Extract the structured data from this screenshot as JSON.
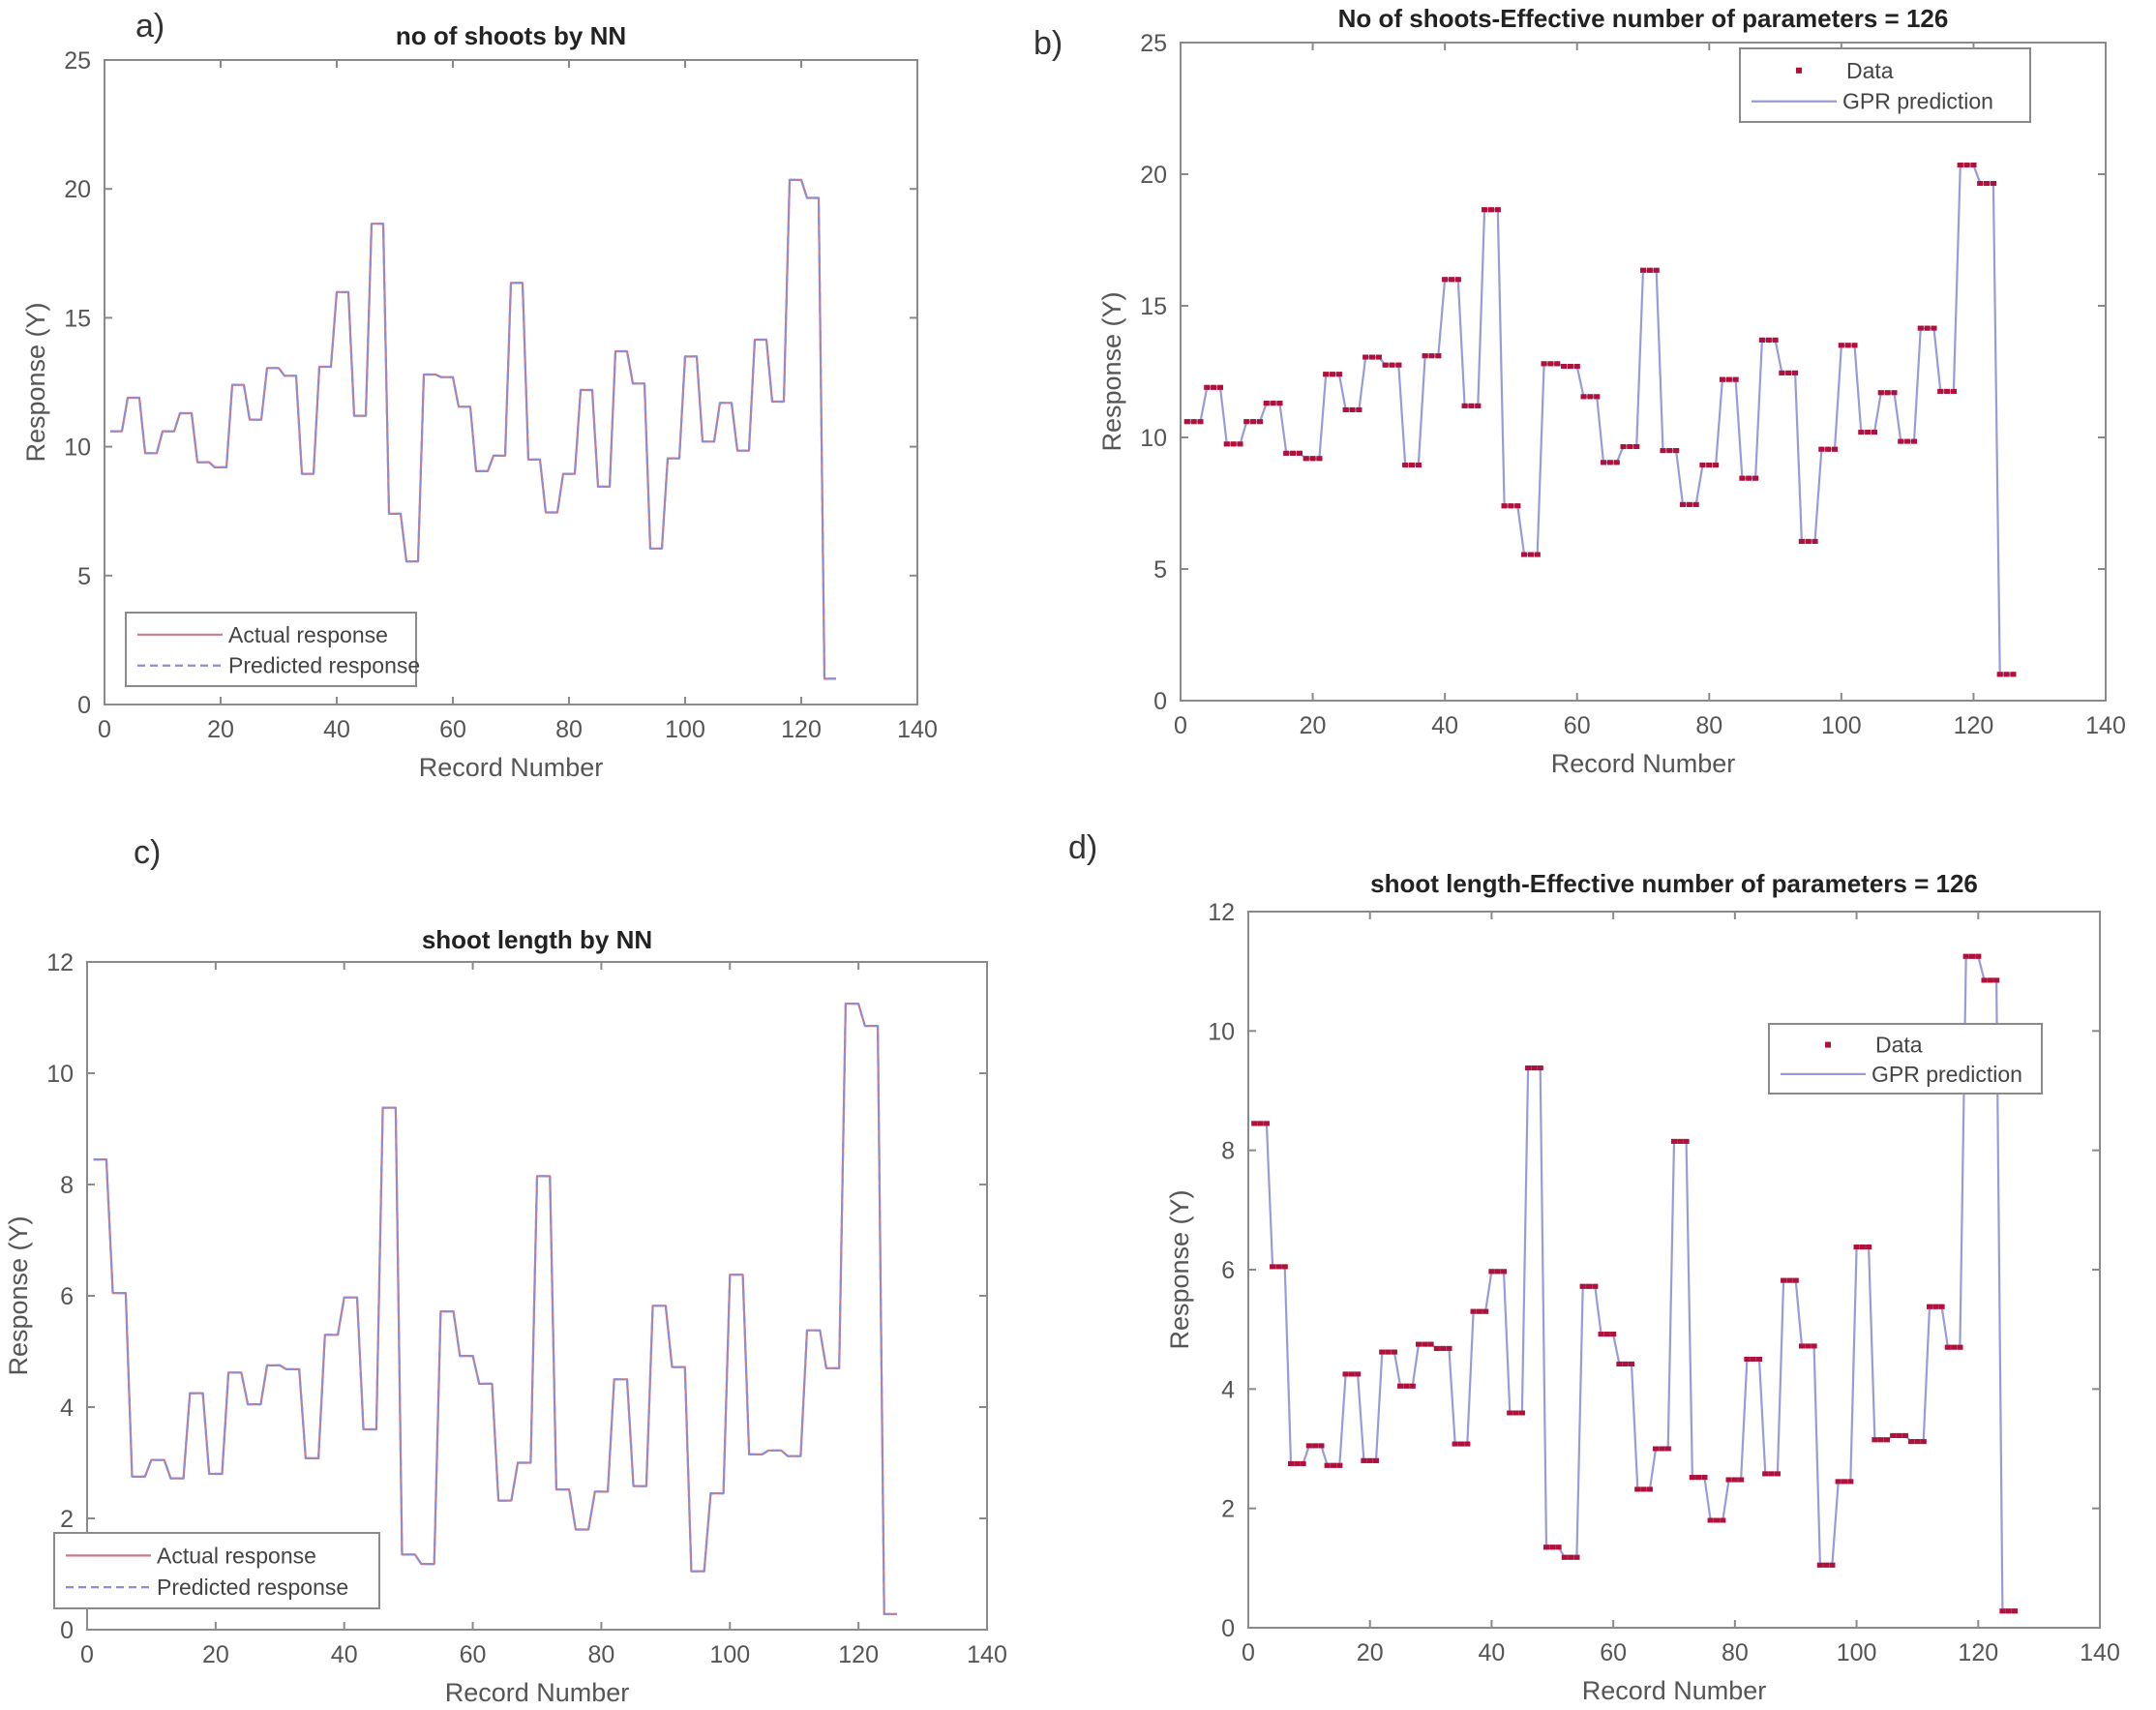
{
  "panel_labels": [
    "a)",
    "b)",
    "c)",
    "d)"
  ],
  "chart_data": [
    {
      "id": "a",
      "type": "line",
      "title": "no of shoots by NN",
      "xlabel": "Record Number",
      "ylabel": "Response (Y)",
      "xlim": [
        0,
        140
      ],
      "ylim": [
        0,
        25
      ],
      "xticks": [
        0,
        20,
        40,
        60,
        80,
        100,
        120,
        140
      ],
      "yticks": [
        0,
        5,
        10,
        15,
        20,
        25
      ],
      "grid": false,
      "legend_position": "bottom-left",
      "series": [
        {
          "name": "Actual response",
          "style": "solid",
          "color": "#c97a8a",
          "source": "no_of_shoots"
        },
        {
          "name": "Predicted response",
          "style": "dashed",
          "color": "#8c8cd8",
          "source": "no_of_shoots"
        }
      ]
    },
    {
      "id": "b",
      "type": "line",
      "title": "No of shoots-Effective number of parameters = 126",
      "xlabel": "Record Number",
      "ylabel": "Response (Y)",
      "xlim": [
        0,
        140
      ],
      "ylim": [
        0,
        25
      ],
      "xticks": [
        0,
        20,
        40,
        60,
        80,
        100,
        120,
        140
      ],
      "yticks": [
        0,
        5,
        10,
        15,
        20,
        25
      ],
      "grid": false,
      "legend_position": "top-right",
      "series": [
        {
          "name": "Data",
          "style": "points",
          "color": "#b0103a",
          "source": "no_of_shoots"
        },
        {
          "name": "GPR prediction",
          "style": "solid",
          "color": "#9a9ad8",
          "source": "no_of_shoots"
        }
      ]
    },
    {
      "id": "c",
      "type": "line",
      "title": "shoot length by NN",
      "xlabel": "Record Number",
      "ylabel": "Response (Y)",
      "xlim": [
        0,
        140
      ],
      "ylim": [
        0,
        12
      ],
      "xticks": [
        0,
        20,
        40,
        60,
        80,
        100,
        120,
        140
      ],
      "yticks": [
        0,
        2,
        4,
        6,
        8,
        10,
        12
      ],
      "grid": false,
      "legend_position": "bottom-left",
      "series": [
        {
          "name": "Actual response",
          "style": "solid",
          "color": "#c97a8a",
          "source": "shoot_length"
        },
        {
          "name": "Predicted response",
          "style": "dashed",
          "color": "#8c8cd8",
          "source": "shoot_length"
        }
      ]
    },
    {
      "id": "d",
      "type": "line",
      "title": "shoot length-Effective number of parameters = 126",
      "xlabel": "Record Number",
      "ylabel": "Response (Y)",
      "xlim": [
        0,
        140
      ],
      "ylim": [
        0,
        12
      ],
      "xticks": [
        0,
        20,
        40,
        60,
        80,
        100,
        120,
        140
      ],
      "yticks": [
        0,
        2,
        4,
        6,
        8,
        10,
        12
      ],
      "grid": false,
      "legend_position": "top-right",
      "series": [
        {
          "name": "Data",
          "style": "points",
          "color": "#b0103a",
          "source": "shoot_length"
        },
        {
          "name": "GPR prediction",
          "style": "solid",
          "color": "#9a9ad8",
          "source": "shoot_length"
        }
      ]
    }
  ],
  "datasets": {
    "records_per_group": 3,
    "x_start": 1,
    "no_of_shoots": [
      10.6,
      11.9,
      9.75,
      10.6,
      11.3,
      9.4,
      9.2,
      12.4,
      11.05,
      13.05,
      12.75,
      8.95,
      13.1,
      16.0,
      11.2,
      18.65,
      7.4,
      5.55,
      12.8,
      12.7,
      11.55,
      9.05,
      9.65,
      16.35,
      9.5,
      7.45,
      8.95,
      12.2,
      8.45,
      13.7,
      12.45,
      6.05,
      9.55,
      13.5,
      10.2,
      11.7,
      9.85,
      14.15,
      11.75,
      20.35,
      19.65,
      1.0
    ],
    "shoot_length": [
      8.45,
      6.05,
      2.75,
      3.05,
      2.72,
      4.25,
      2.8,
      4.62,
      4.05,
      4.75,
      4.68,
      3.08,
      5.3,
      5.97,
      3.6,
      9.38,
      1.35,
      1.18,
      5.72,
      4.92,
      4.42,
      2.32,
      3.0,
      8.15,
      2.52,
      1.8,
      2.48,
      4.5,
      2.58,
      5.82,
      4.72,
      1.05,
      2.45,
      6.38,
      3.15,
      3.22,
      3.12,
      5.38,
      4.7,
      11.25,
      10.85,
      0.28
    ]
  }
}
